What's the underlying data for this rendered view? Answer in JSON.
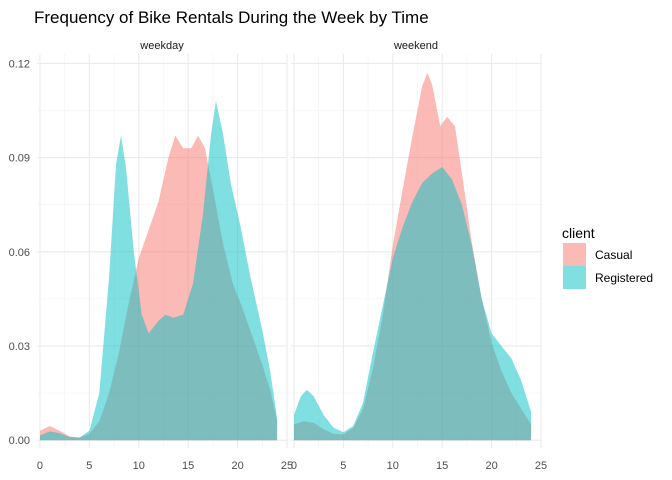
{
  "chart_data": {
    "type": "area",
    "title": "Frequency of Bike Rentals During the Week by Time",
    "xlabel": "",
    "ylabel": "",
    "xlim": [
      -0.3,
      25
    ],
    "ylim": [
      -0.0025,
      0.123
    ],
    "x_ticks": [
      0,
      5,
      10,
      15,
      20,
      25
    ],
    "y_ticks": [
      0.0,
      0.03,
      0.06,
      0.09,
      0.12
    ],
    "y_tick_labels": [
      "0.00",
      "0.03",
      "0.06",
      "0.09",
      "0.12"
    ],
    "grid": true,
    "legend": {
      "title": "client",
      "position": "right"
    },
    "series_colors": {
      "Casual": "#F8766D",
      "Registered": "#00BFC4"
    },
    "facets": [
      {
        "label": "weekday",
        "series": [
          {
            "name": "Casual",
            "points": [
              [
                0,
                0.003
              ],
              [
                1,
                0.0045
              ],
              [
                2,
                0.003
              ],
              [
                3,
                0.0012
              ],
              [
                4,
                0.0008
              ],
              [
                5,
                0.002
              ],
              [
                6,
                0.006
              ],
              [
                7,
                0.015
              ],
              [
                8,
                0.028
              ],
              [
                9,
                0.044
              ],
              [
                10,
                0.058
              ],
              [
                11,
                0.067
              ],
              [
                12,
                0.076
              ],
              [
                13,
                0.09
              ],
              [
                13.7,
                0.097
              ],
              [
                14.5,
                0.093
              ],
              [
                15.3,
                0.093
              ],
              [
                16,
                0.097
              ],
              [
                16.7,
                0.093
              ],
              [
                17.5,
                0.08
              ],
              [
                18.5,
                0.063
              ],
              [
                19.5,
                0.05
              ],
              [
                20.5,
                0.042
              ],
              [
                21.5,
                0.033
              ],
              [
                22.5,
                0.024
              ],
              [
                23.3,
                0.016
              ],
              [
                24,
                0.006
              ]
            ]
          },
          {
            "name": "Registered",
            "points": [
              [
                0,
                0.0015
              ],
              [
                1,
                0.0028
              ],
              [
                2,
                0.0022
              ],
              [
                3,
                0.001
              ],
              [
                4,
                0.0008
              ],
              [
                5,
                0.003
              ],
              [
                6,
                0.015
              ],
              [
                7,
                0.052
              ],
              [
                7.7,
                0.088
              ],
              [
                8.2,
                0.097
              ],
              [
                8.7,
                0.087
              ],
              [
                9.5,
                0.06
              ],
              [
                10.3,
                0.04
              ],
              [
                11,
                0.034
              ],
              [
                12,
                0.038
              ],
              [
                12.7,
                0.04
              ],
              [
                13.5,
                0.039
              ],
              [
                14.5,
                0.04
              ],
              [
                15.5,
                0.05
              ],
              [
                16.5,
                0.072
              ],
              [
                17.3,
                0.097
              ],
              [
                17.8,
                0.108
              ],
              [
                18.5,
                0.098
              ],
              [
                19.3,
                0.082
              ],
              [
                20.3,
                0.068
              ],
              [
                21.3,
                0.052
              ],
              [
                22.5,
                0.035
              ],
              [
                23.3,
                0.022
              ],
              [
                24,
                0.007
              ]
            ]
          }
        ]
      },
      {
        "label": "weekend",
        "series": [
          {
            "name": "Casual",
            "points": [
              [
                0,
                0.005
              ],
              [
                1,
                0.006
              ],
              [
                2,
                0.0055
              ],
              [
                3,
                0.0035
              ],
              [
                4,
                0.002
              ],
              [
                5,
                0.0018
              ],
              [
                6,
                0.004
              ],
              [
                7,
                0.01
              ],
              [
                8,
                0.023
              ],
              [
                9,
                0.04
              ],
              [
                10,
                0.062
              ],
              [
                11,
                0.08
              ],
              [
                12,
                0.097
              ],
              [
                13,
                0.113
              ],
              [
                13.5,
                0.117
              ],
              [
                14,
                0.113
              ],
              [
                14.8,
                0.1
              ],
              [
                15.5,
                0.103
              ],
              [
                16.3,
                0.1
              ],
              [
                17,
                0.085
              ],
              [
                18,
                0.063
              ],
              [
                19,
                0.045
              ],
              [
                20,
                0.031
              ],
              [
                21,
                0.022
              ],
              [
                22,
                0.015
              ],
              [
                23,
                0.01
              ],
              [
                24,
                0.005
              ]
            ]
          },
          {
            "name": "Registered",
            "points": [
              [
                0,
                0.008
              ],
              [
                0.7,
                0.014
              ],
              [
                1.3,
                0.016
              ],
              [
                2,
                0.014
              ],
              [
                3,
                0.008
              ],
              [
                4,
                0.004
              ],
              [
                5,
                0.0025
              ],
              [
                6,
                0.0045
              ],
              [
                7,
                0.012
              ],
              [
                8,
                0.028
              ],
              [
                9,
                0.043
              ],
              [
                10,
                0.058
              ],
              [
                11,
                0.068
              ],
              [
                12,
                0.076
              ],
              [
                13,
                0.082
              ],
              [
                14,
                0.085
              ],
              [
                15,
                0.087
              ],
              [
                16,
                0.083
              ],
              [
                17,
                0.075
              ],
              [
                18,
                0.062
              ],
              [
                19,
                0.045
              ],
              [
                20,
                0.034
              ],
              [
                21,
                0.03
              ],
              [
                22,
                0.026
              ],
              [
                23,
                0.019
              ],
              [
                24,
                0.009
              ]
            ]
          }
        ]
      }
    ]
  }
}
